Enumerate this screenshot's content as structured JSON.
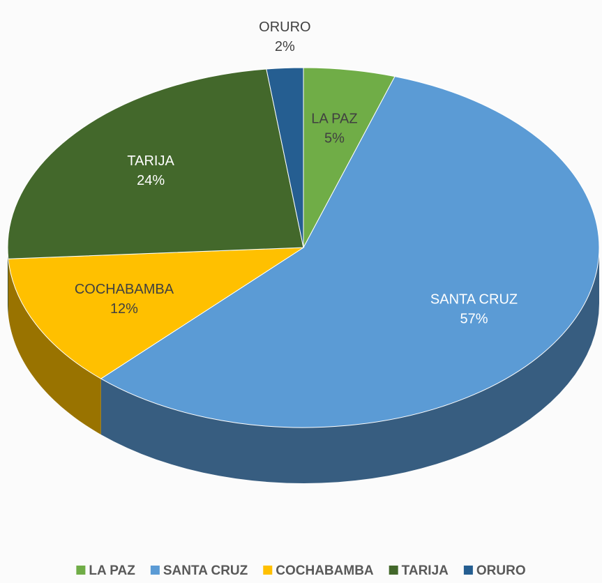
{
  "chart_data": {
    "type": "pie3d",
    "categories": [
      "LA PAZ",
      "SANTA CRUZ",
      "COCHABAMBA",
      "TARIJA",
      "ORURO"
    ],
    "values": [
      5,
      57,
      12,
      24,
      2
    ],
    "value_labels": [
      "5%",
      "57%",
      "12%",
      "24%",
      "2%"
    ],
    "colors": [
      "#70ad47",
      "#5b9bd5",
      "#ffc000",
      "#43682b",
      "#255e91"
    ],
    "legend": "bottom"
  }
}
